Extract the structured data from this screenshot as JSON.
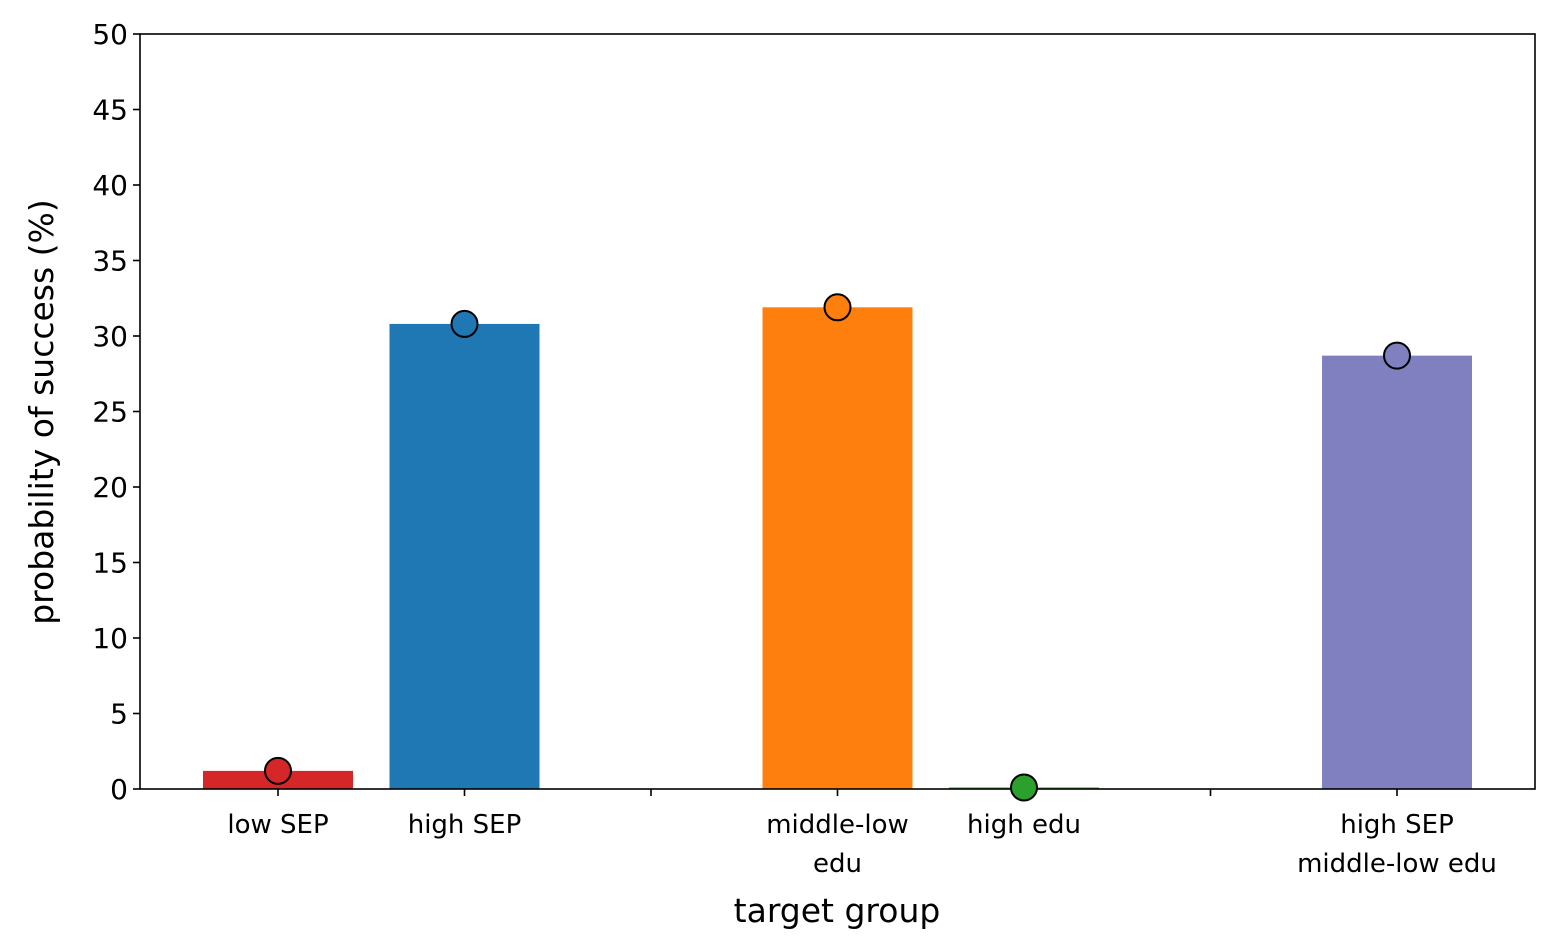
{
  "chart_data": {
    "type": "bar",
    "title": "",
    "xlabel": "target group",
    "ylabel": "probability of success (%)",
    "ylim": [
      0,
      50
    ],
    "yticks": [
      0,
      5,
      10,
      15,
      20,
      25,
      30,
      35,
      40,
      45,
      50
    ],
    "grid": false,
    "legend": "none",
    "slots": 7,
    "bars": [
      {
        "slot": 0,
        "label": [
          "low SEP"
        ],
        "value": 1.2,
        "marker": 1.2,
        "color": "#d62728"
      },
      {
        "slot": 1,
        "label": [
          "high SEP"
        ],
        "value": 30.8,
        "marker": 30.8,
        "color": "#1f77b4"
      },
      {
        "slot": 3,
        "label": [
          "middle-low",
          "edu"
        ],
        "value": 31.9,
        "marker": 31.9,
        "color": "#ff7f0e"
      },
      {
        "slot": 4,
        "label": [
          "high edu"
        ],
        "value": 0.1,
        "marker": 0.1,
        "color": "#2ca02c"
      },
      {
        "slot": 6,
        "label": [
          "high SEP",
          "middle-low edu"
        ],
        "value": 28.7,
        "marker": 28.7,
        "color": "#8080c0"
      }
    ],
    "minor_ticks_at_slots": [
      2,
      5
    ]
  }
}
